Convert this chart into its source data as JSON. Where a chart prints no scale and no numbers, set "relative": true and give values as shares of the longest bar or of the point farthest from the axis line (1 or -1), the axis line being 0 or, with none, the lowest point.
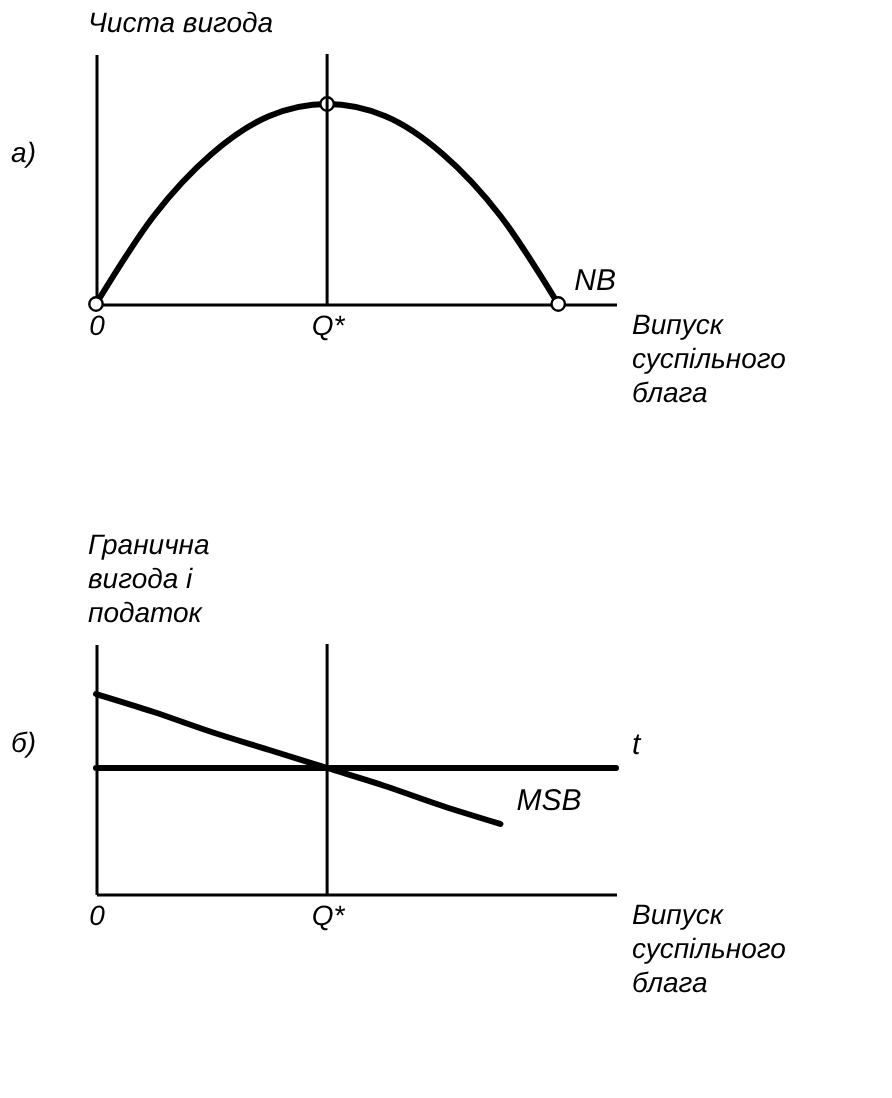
{
  "chart_data": [
    {
      "type": "line",
      "relative": true,
      "ylabel": "Чиста вигода",
      "xlabel": "Випуск суспільного блага",
      "annotations": [
        "а)"
      ],
      "categories": [
        "0",
        null,
        null,
        null,
        "Q*",
        null,
        null,
        null,
        null,
        null
      ],
      "tick_labels": "x",
      "grid": false,
      "ref_lines": [
        {
          "axis": "x",
          "value": "Q*",
          "label": null,
          "color": "#000000"
        }
      ],
      "series": [
        {
          "name": "NB",
          "color": "#000000",
          "values": [
            0,
            0.44,
            0.75,
            0.94,
            1,
            0.94,
            0.75,
            0.44,
            0,
            null
          ]
        },
        {
          "type": "scatter",
          "marker": "circle",
          "color": "#000000",
          "values": [
            0,
            null,
            null,
            null,
            1,
            null,
            null,
            null,
            0,
            null
          ]
        }
      ]
    },
    {
      "type": "line",
      "relative": true,
      "ylabel": "Гранична вигода і податок",
      "xlabel": "Випуск суспільного блага",
      "annotations": [
        "б)"
      ],
      "categories": [
        "0",
        null,
        null,
        null,
        "Q*",
        null,
        null,
        null,
        null,
        null
      ],
      "tick_labels": "x",
      "grid": false,
      "ref_lines": [
        {
          "axis": "x",
          "value": "Q*",
          "label": null,
          "color": "#000000"
        }
      ],
      "series": [
        {
          "name": "t",
          "color": "#000000",
          "values": [
            0.63,
            0.63,
            0.63,
            0.63,
            0.63,
            0.63,
            0.63,
            0.63,
            0.63,
            0.63
          ]
        },
        {
          "name": "MSB",
          "color": "#000000",
          "values": [
            1,
            0.91,
            0.81,
            0.72,
            0.63,
            0.54,
            0.44,
            0.35,
            null,
            null
          ]
        }
      ]
    }
  ]
}
